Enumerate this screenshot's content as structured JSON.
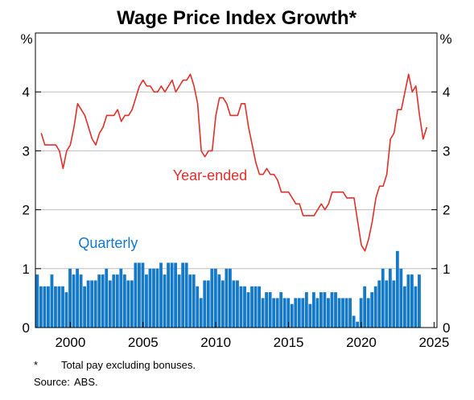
{
  "chart_data": {
    "type": "bar+line",
    "title": "Wage Price Index Growth*",
    "unit_left": "%",
    "unit_right": "%",
    "xlim": [
      1997.6,
      2025.2
    ],
    "ylim": [
      0,
      5
    ],
    "x_ticks": [
      2000,
      2005,
      2010,
      2015,
      2020,
      2025
    ],
    "x_tick_labels": [
      "2000",
      "2005",
      "2010",
      "2015",
      "2020",
      "2025"
    ],
    "y_ticks": [
      0,
      1,
      2,
      3,
      4
    ],
    "y_tick_labels": [
      "0",
      "1",
      "2",
      "3",
      "4"
    ],
    "grid": true,
    "colors": {
      "year_ended": "#e0302a",
      "quarterly": "#1479c8"
    },
    "series": [
      {
        "name": "Year-ended",
        "type": "line",
        "start": 1998.0,
        "step": 0.25,
        "values": [
          3.3,
          3.1,
          3.1,
          3.1,
          3.1,
          3.0,
          2.7,
          3.0,
          3.1,
          3.4,
          3.8,
          3.7,
          3.6,
          3.4,
          3.2,
          3.1,
          3.3,
          3.4,
          3.6,
          3.6,
          3.6,
          3.7,
          3.5,
          3.6,
          3.6,
          3.7,
          3.9,
          4.1,
          4.2,
          4.1,
          4.1,
          4.0,
          4.0,
          4.1,
          4.0,
          4.1,
          4.2,
          4.0,
          4.1,
          4.2,
          4.2,
          4.3,
          4.1,
          3.8,
          3.0,
          2.9,
          3.0,
          3.0,
          3.6,
          3.9,
          3.9,
          3.8,
          3.6,
          3.6,
          3.6,
          3.8,
          3.8,
          3.4,
          3.1,
          2.8,
          2.6,
          2.6,
          2.7,
          2.6,
          2.6,
          2.5,
          2.3,
          2.3,
          2.3,
          2.2,
          2.1,
          2.1,
          1.9,
          1.9,
          1.9,
          1.9,
          2.0,
          2.1,
          2.0,
          2.1,
          2.3,
          2.3,
          2.3,
          2.3,
          2.2,
          2.2,
          2.2,
          1.8,
          1.4,
          1.3,
          1.5,
          1.8,
          2.2,
          2.4,
          2.4,
          2.6,
          3.2,
          3.3,
          3.7,
          3.7,
          4.0,
          4.3,
          4.0,
          4.1,
          3.6,
          3.2,
          3.4
        ]
      },
      {
        "name": "Quarterly",
        "type": "bar",
        "start": 1997.75,
        "step": 0.25,
        "values": [
          0.9,
          0.7,
          0.7,
          0.7,
          0.9,
          0.7,
          0.7,
          0.7,
          0.6,
          1.0,
          0.9,
          1.0,
          0.9,
          0.7,
          0.8,
          0.8,
          0.8,
          0.9,
          0.9,
          1.0,
          0.8,
          0.9,
          0.9,
          1.0,
          0.9,
          0.8,
          0.8,
          1.1,
          1.1,
          1.1,
          0.9,
          1.0,
          1.0,
          1.0,
          1.1,
          0.9,
          1.1,
          1.1,
          1.1,
          0.9,
          1.1,
          1.1,
          0.9,
          0.9,
          0.7,
          0.5,
          0.8,
          0.8,
          1.0,
          1.0,
          0.9,
          0.8,
          1.0,
          1.0,
          0.8,
          0.8,
          0.7,
          0.7,
          0.6,
          0.7,
          0.7,
          0.7,
          0.5,
          0.6,
          0.6,
          0.5,
          0.5,
          0.6,
          0.5,
          0.5,
          0.4,
          0.5,
          0.5,
          0.5,
          0.6,
          0.4,
          0.6,
          0.5,
          0.6,
          0.6,
          0.5,
          0.6,
          0.6,
          0.5,
          0.5,
          0.5,
          0.5,
          0.2,
          0.1,
          0.5,
          0.7,
          0.5,
          0.6,
          0.7,
          0.8,
          1.0,
          0.8,
          1.0,
          0.8,
          1.3,
          1.0,
          0.7,
          0.9,
          0.9,
          0.7,
          0.9
        ]
      }
    ],
    "annotations": [
      {
        "text": "Year-ended",
        "x": 2009.6,
        "y": 2.5,
        "series": "Year-ended"
      },
      {
        "text": "Quarterly",
        "x": 2002.6,
        "y": 1.35,
        "series": "Quarterly"
      }
    ]
  },
  "footnotes": {
    "asterisk_mark": "*",
    "asterisk_text": "Total pay excluding bonuses.",
    "source_label": "Source:",
    "source_text": "ABS."
  }
}
